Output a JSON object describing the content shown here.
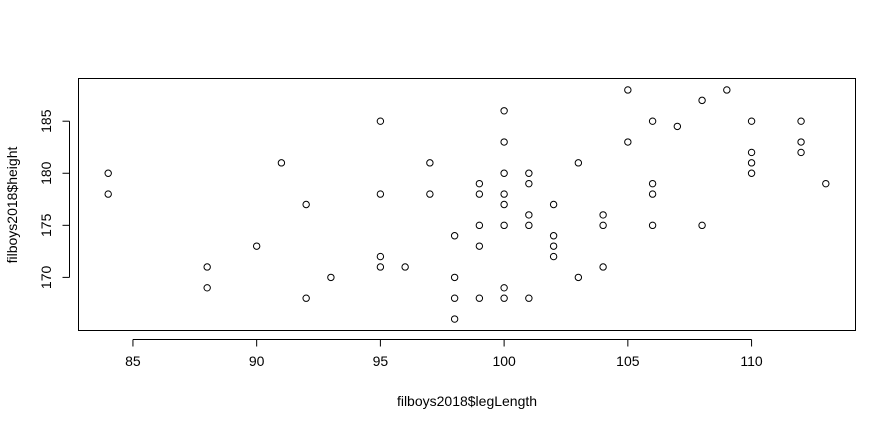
{
  "chart_data": {
    "type": "scatter",
    "title": "",
    "xlabel": "filboys2018$legLength",
    "ylabel": "filboys2018$height",
    "xlim": [
      82.8,
      114.2
    ],
    "ylim": [
      164.9,
      189.1
    ],
    "xticks": [
      85,
      90,
      95,
      100,
      105,
      110
    ],
    "yticks": [
      170,
      175,
      180,
      185
    ],
    "grid": false,
    "marker": "open-circle",
    "points": [
      {
        "x": 84,
        "y": 180
      },
      {
        "x": 84,
        "y": 178
      },
      {
        "x": 88,
        "y": 171
      },
      {
        "x": 88,
        "y": 169
      },
      {
        "x": 90,
        "y": 173
      },
      {
        "x": 91,
        "y": 181
      },
      {
        "x": 92,
        "y": 177
      },
      {
        "x": 92,
        "y": 168
      },
      {
        "x": 93,
        "y": 170
      },
      {
        "x": 95,
        "y": 185
      },
      {
        "x": 95,
        "y": 178
      },
      {
        "x": 95,
        "y": 172
      },
      {
        "x": 95,
        "y": 171
      },
      {
        "x": 96,
        "y": 171
      },
      {
        "x": 97,
        "y": 181
      },
      {
        "x": 97,
        "y": 178
      },
      {
        "x": 98,
        "y": 174
      },
      {
        "x": 98,
        "y": 170
      },
      {
        "x": 98,
        "y": 168
      },
      {
        "x": 98,
        "y": 166
      },
      {
        "x": 99,
        "y": 179
      },
      {
        "x": 99,
        "y": 178
      },
      {
        "x": 99,
        "y": 175
      },
      {
        "x": 99,
        "y": 173
      },
      {
        "x": 99,
        "y": 168
      },
      {
        "x": 100,
        "y": 186
      },
      {
        "x": 100,
        "y": 183
      },
      {
        "x": 100,
        "y": 180
      },
      {
        "x": 100,
        "y": 178
      },
      {
        "x": 100,
        "y": 177
      },
      {
        "x": 100,
        "y": 175
      },
      {
        "x": 100,
        "y": 169
      },
      {
        "x": 100,
        "y": 168
      },
      {
        "x": 101,
        "y": 180
      },
      {
        "x": 101,
        "y": 179
      },
      {
        "x": 101,
        "y": 176
      },
      {
        "x": 101,
        "y": 175
      },
      {
        "x": 101,
        "y": 168
      },
      {
        "x": 102,
        "y": 177
      },
      {
        "x": 102,
        "y": 174
      },
      {
        "x": 102,
        "y": 173
      },
      {
        "x": 102,
        "y": 172
      },
      {
        "x": 103,
        "y": 181
      },
      {
        "x": 103,
        "y": 170
      },
      {
        "x": 104,
        "y": 176
      },
      {
        "x": 104,
        "y": 175
      },
      {
        "x": 104,
        "y": 171
      },
      {
        "x": 105,
        "y": 188
      },
      {
        "x": 105,
        "y": 183
      },
      {
        "x": 106,
        "y": 185
      },
      {
        "x": 106,
        "y": 179
      },
      {
        "x": 106,
        "y": 178
      },
      {
        "x": 106,
        "y": 175
      },
      {
        "x": 107,
        "y": 184.5
      },
      {
        "x": 108,
        "y": 187
      },
      {
        "x": 108,
        "y": 175
      },
      {
        "x": 109,
        "y": 188
      },
      {
        "x": 110,
        "y": 185
      },
      {
        "x": 110,
        "y": 182
      },
      {
        "x": 110,
        "y": 181
      },
      {
        "x": 110,
        "y": 180
      },
      {
        "x": 112,
        "y": 185
      },
      {
        "x": 112,
        "y": 183
      },
      {
        "x": 112,
        "y": 182
      },
      {
        "x": 113,
        "y": 179
      }
    ]
  }
}
